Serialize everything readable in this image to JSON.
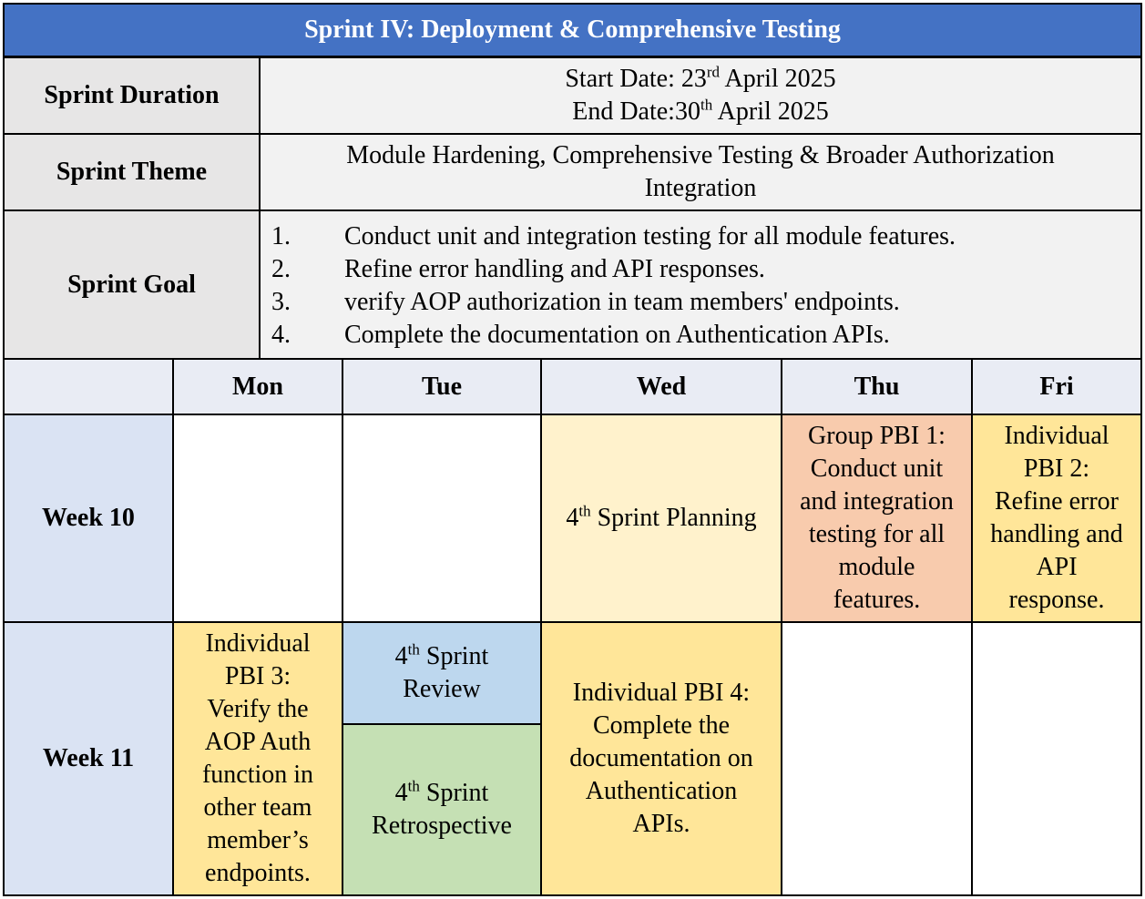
{
  "title": "Sprint IV: Deployment & Comprehensive Testing",
  "duration": {
    "label": "Sprint Duration",
    "start_prefix": "Start Date: 23",
    "start_sup": "rd",
    "start_suffix": " April 2025",
    "end_prefix": "End Date:30",
    "end_sup": "th",
    "end_suffix": " April 2025"
  },
  "theme": {
    "label": "Sprint Theme",
    "line1": "Module Hardening, Comprehensive Testing & Broader Authorization",
    "line2": "Integration"
  },
  "goal": {
    "label": "Sprint Goal",
    "items": [
      {
        "num": "1.",
        "text": "Conduct unit and integration testing for all module features."
      },
      {
        "num": "2.",
        "text": "Refine error handling and API responses."
      },
      {
        "num": "3.",
        "text": "verify AOP authorization in team members' endpoints."
      },
      {
        "num": "4.",
        "text": "Complete the documentation on Authentication APIs."
      }
    ]
  },
  "days": [
    "Mon",
    "Tue",
    "Wed",
    "Thu",
    "Fri"
  ],
  "weeks": [
    "Week 10",
    "Week 11"
  ],
  "week10": {
    "wed": {
      "pre": "4",
      "sup": "th",
      "post": " Sprint Planning"
    },
    "thu": [
      "Group PBI 1:",
      "Conduct unit",
      "and integration",
      "testing for all",
      "module",
      "features."
    ],
    "fri": [
      "Individual",
      "PBI 2:",
      "Refine error",
      "handling and",
      "API",
      "response."
    ]
  },
  "week11": {
    "mon": [
      "Individual",
      "PBI 3:",
      "Verify the",
      "AOP Auth",
      "function in",
      "other team",
      "member’s",
      "endpoints."
    ],
    "tue_review": {
      "pre": "4",
      "sup": "th",
      "post": " Sprint",
      "line2": "Review"
    },
    "tue_retro": {
      "pre": "4",
      "sup": "th",
      "post": " Sprint",
      "line2": "Retrospective"
    },
    "wed": [
      "Individual PBI 4:",
      "Complete the",
      "documentation on",
      "Authentication",
      "APIs."
    ]
  },
  "colors": {
    "title_bg": "#4472c4",
    "label_bg": "#e7e6e6",
    "value_bg": "#f2f2f2",
    "day_header_bg": "#e9ecf4",
    "week_bg": "#dae3f3",
    "planning_bg": "#fff2cc",
    "group_pbi_bg": "#f8cbad",
    "individual_pbi_bg": "#ffe699",
    "review_bg": "#bdd7ee",
    "retro_bg": "#c5e0b4"
  }
}
